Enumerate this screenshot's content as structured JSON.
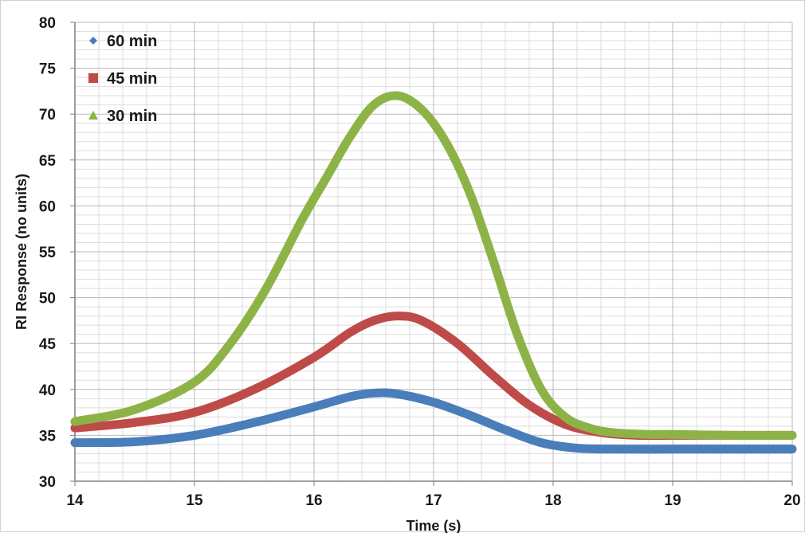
{
  "chart_data": {
    "type": "line",
    "title": "",
    "xlabel": "Time (s)",
    "ylabel": "RI Response (no units)",
    "xlim": [
      14,
      20
    ],
    "ylim": [
      30,
      80
    ],
    "x_ticks": [
      "14",
      "15",
      "16",
      "17",
      "18",
      "19",
      "20"
    ],
    "y_ticks": [
      "30",
      "35",
      "40",
      "45",
      "50",
      "55",
      "60",
      "65",
      "70",
      "75",
      "80"
    ],
    "grid": true,
    "legend_position": "top-left",
    "series": [
      {
        "name": "60 min",
        "color": "#4a7ebb",
        "marker": "diamond",
        "x": [
          14.0,
          14.5,
          15.0,
          15.5,
          16.0,
          16.3,
          16.5,
          16.7,
          17.0,
          17.3,
          17.6,
          17.9,
          18.2,
          18.5,
          19.0,
          19.5,
          20.0
        ],
        "y": [
          34.2,
          34.3,
          35.0,
          36.4,
          38.1,
          39.2,
          39.6,
          39.5,
          38.6,
          37.2,
          35.6,
          34.2,
          33.6,
          33.5,
          33.5,
          33.5,
          33.5
        ]
      },
      {
        "name": "45 min",
        "color": "#be4b48",
        "marker": "square",
        "x": [
          14.0,
          14.5,
          15.0,
          15.5,
          16.0,
          16.3,
          16.5,
          16.7,
          16.9,
          17.2,
          17.5,
          17.8,
          18.1,
          18.4,
          18.7,
          19.0,
          19.5,
          20.0
        ],
        "y": [
          35.8,
          36.4,
          37.5,
          40.0,
          43.5,
          46.2,
          47.5,
          48.0,
          47.5,
          45.0,
          41.5,
          38.3,
          36.2,
          35.3,
          35.0,
          35.0,
          35.0,
          35.0
        ]
      },
      {
        "name": "30 min",
        "color": "#8db346",
        "marker": "triangle",
        "x": [
          14.0,
          14.5,
          15.0,
          15.3,
          15.6,
          15.9,
          16.1,
          16.3,
          16.5,
          16.7,
          16.9,
          17.1,
          17.3,
          17.5,
          17.7,
          17.9,
          18.1,
          18.3,
          18.5,
          18.8,
          19.0,
          19.5,
          20.0
        ],
        "y": [
          36.5,
          37.8,
          40.8,
          45.0,
          51.0,
          58.5,
          63.0,
          67.5,
          71.0,
          72.0,
          70.5,
          67.0,
          61.5,
          54.0,
          46.0,
          40.0,
          37.0,
          35.8,
          35.3,
          35.1,
          35.1,
          35.0,
          35.0
        ]
      }
    ]
  }
}
